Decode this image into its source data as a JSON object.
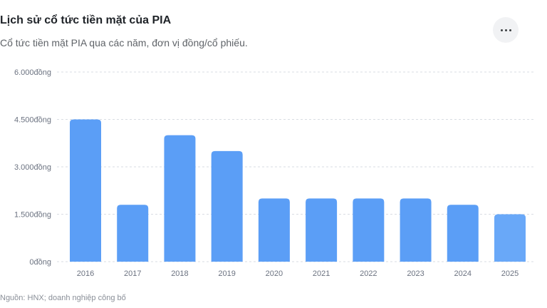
{
  "header": {
    "title": "Lịch sử cổ tức tiền mặt của PIA",
    "subtitle": "Cổ tức tiền mặt PIA qua các năm, đơn vị đồng/cổ phiếu."
  },
  "menu": {
    "icon": "more-horizontal-icon"
  },
  "footer": {
    "source": "Nguồn: HNX; doanh nghiệp công bố"
  },
  "colors": {
    "bar": "#5b9ef6",
    "bar_last": "#69a8f8",
    "grid": "#d9dde3"
  },
  "chart_data": {
    "type": "bar",
    "categories": [
      "2016",
      "2017",
      "2018",
      "2019",
      "2020",
      "2021",
      "2022",
      "2023",
      "2024",
      "2025"
    ],
    "values": [
      4500,
      1800,
      4000,
      3500,
      2000,
      2000,
      2000,
      2000,
      1800,
      1500
    ],
    "ylim": [
      0,
      6000
    ],
    "yticks": [
      0,
      1500,
      3000,
      4500,
      6000
    ],
    "ytick_labels": [
      "0đồng",
      "1.500đồng",
      "3.000đồng",
      "4.500đồng",
      "6.000đồng"
    ],
    "grid": true
  }
}
